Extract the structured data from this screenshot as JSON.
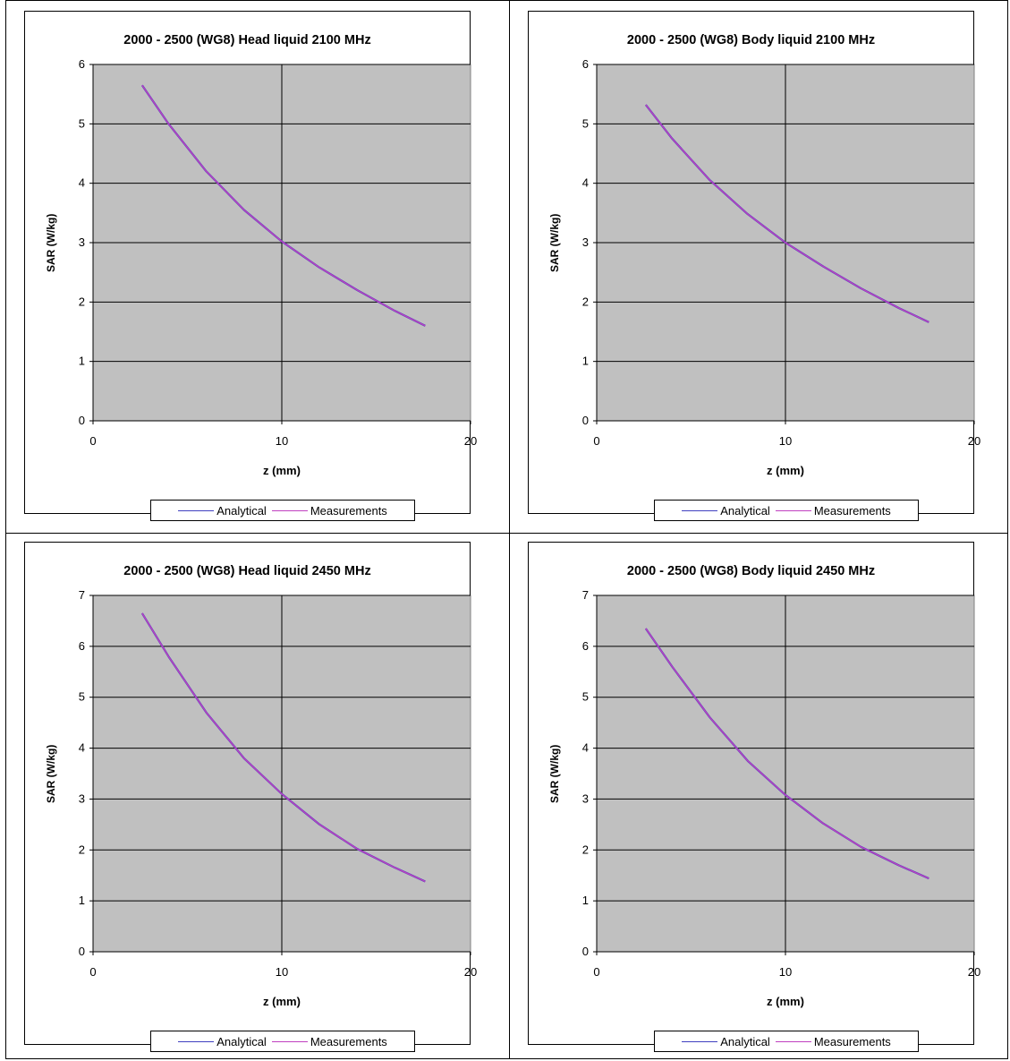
{
  "chart_data": [
    {
      "type": "line",
      "title": "2000 - 2500 (WG8) Head liquid 2100 MHz",
      "xlabel": "z (mm)",
      "ylabel": "SAR (W/kg)",
      "xlim": [
        0,
        20
      ],
      "ylim": [
        0,
        6
      ],
      "xticks": [
        "0",
        "10",
        "20"
      ],
      "yticks": [
        "0",
        "1",
        "2",
        "3",
        "4",
        "5",
        "6"
      ],
      "grid": true,
      "legend_position": "bottom",
      "series": [
        {
          "name": "Analytical",
          "color": "#4040c0",
          "x": [
            2.6,
            4,
            6,
            8,
            10,
            12,
            14,
            16,
            17.6
          ],
          "y": [
            5.65,
            5.0,
            4.2,
            3.55,
            3.02,
            2.58,
            2.2,
            1.85,
            1.6
          ]
        },
        {
          "name": "Measurements",
          "color": "#c040c0",
          "x": [
            2.6,
            4,
            6,
            8,
            10,
            12,
            14,
            16,
            17.6
          ],
          "y": [
            5.65,
            5.0,
            4.2,
            3.55,
            3.02,
            2.58,
            2.2,
            1.85,
            1.6
          ]
        }
      ]
    },
    {
      "type": "line",
      "title": "2000 - 2500 (WG8) Body liquid 2100 MHz",
      "xlabel": "z (mm)",
      "ylabel": "SAR (W/kg)",
      "xlim": [
        0,
        20
      ],
      "ylim": [
        0,
        6
      ],
      "xticks": [
        "0",
        "10",
        "20"
      ],
      "yticks": [
        "0",
        "1",
        "2",
        "3",
        "4",
        "5",
        "6"
      ],
      "grid": true,
      "legend_position": "bottom",
      "series": [
        {
          "name": "Analytical",
          "color": "#4040c0",
          "x": [
            2.6,
            4,
            6,
            8,
            10,
            12,
            14,
            16,
            17.6
          ],
          "y": [
            5.32,
            4.75,
            4.05,
            3.48,
            3.0,
            2.6,
            2.23,
            1.9,
            1.66
          ]
        },
        {
          "name": "Measurements",
          "color": "#c040c0",
          "x": [
            2.6,
            4,
            6,
            8,
            10,
            12,
            14,
            16,
            17.6
          ],
          "y": [
            5.32,
            4.75,
            4.05,
            3.48,
            3.0,
            2.6,
            2.23,
            1.9,
            1.66
          ]
        }
      ]
    },
    {
      "type": "line",
      "title": "2000 - 2500 (WG8) Head liquid 2450 MHz",
      "xlabel": "z (mm)",
      "ylabel": "SAR (W/kg)",
      "xlim": [
        0,
        20
      ],
      "ylim": [
        0,
        7
      ],
      "xticks": [
        "0",
        "10",
        "20"
      ],
      "yticks": [
        "0",
        "1",
        "2",
        "3",
        "4",
        "5",
        "6",
        "7"
      ],
      "grid": true,
      "legend_position": "bottom",
      "series": [
        {
          "name": "Analytical",
          "color": "#4040c0",
          "x": [
            2.6,
            4,
            6,
            8,
            10,
            12,
            14,
            16,
            17.6
          ],
          "y": [
            6.65,
            5.8,
            4.7,
            3.8,
            3.1,
            2.5,
            2.02,
            1.65,
            1.38
          ]
        },
        {
          "name": "Measurements",
          "color": "#c040c0",
          "x": [
            2.6,
            4,
            6,
            8,
            10,
            12,
            14,
            16,
            17.6
          ],
          "y": [
            6.65,
            5.8,
            4.7,
            3.8,
            3.1,
            2.5,
            2.02,
            1.65,
            1.38
          ]
        }
      ]
    },
    {
      "type": "line",
      "title": "2000 - 2500 (WG8) Body liquid 2450 MHz",
      "xlabel": "z (mm)",
      "ylabel": "SAR (W/kg)",
      "xlim": [
        0,
        20
      ],
      "ylim": [
        0,
        7
      ],
      "xticks": [
        "0",
        "10",
        "20"
      ],
      "yticks": [
        "0",
        "1",
        "2",
        "3",
        "4",
        "5",
        "6",
        "7"
      ],
      "grid": true,
      "legend_position": "bottom",
      "series": [
        {
          "name": "Analytical",
          "color": "#4040c0",
          "x": [
            2.6,
            4,
            6,
            8,
            10,
            12,
            14,
            16,
            17.6
          ],
          "y": [
            6.35,
            5.6,
            4.6,
            3.75,
            3.08,
            2.52,
            2.06,
            1.7,
            1.44
          ]
        },
        {
          "name": "Measurements",
          "color": "#c040c0",
          "x": [
            2.6,
            4,
            6,
            8,
            10,
            12,
            14,
            16,
            17.6
          ],
          "y": [
            6.35,
            5.6,
            4.6,
            3.75,
            3.08,
            2.52,
            2.06,
            1.7,
            1.44
          ]
        }
      ]
    }
  ]
}
